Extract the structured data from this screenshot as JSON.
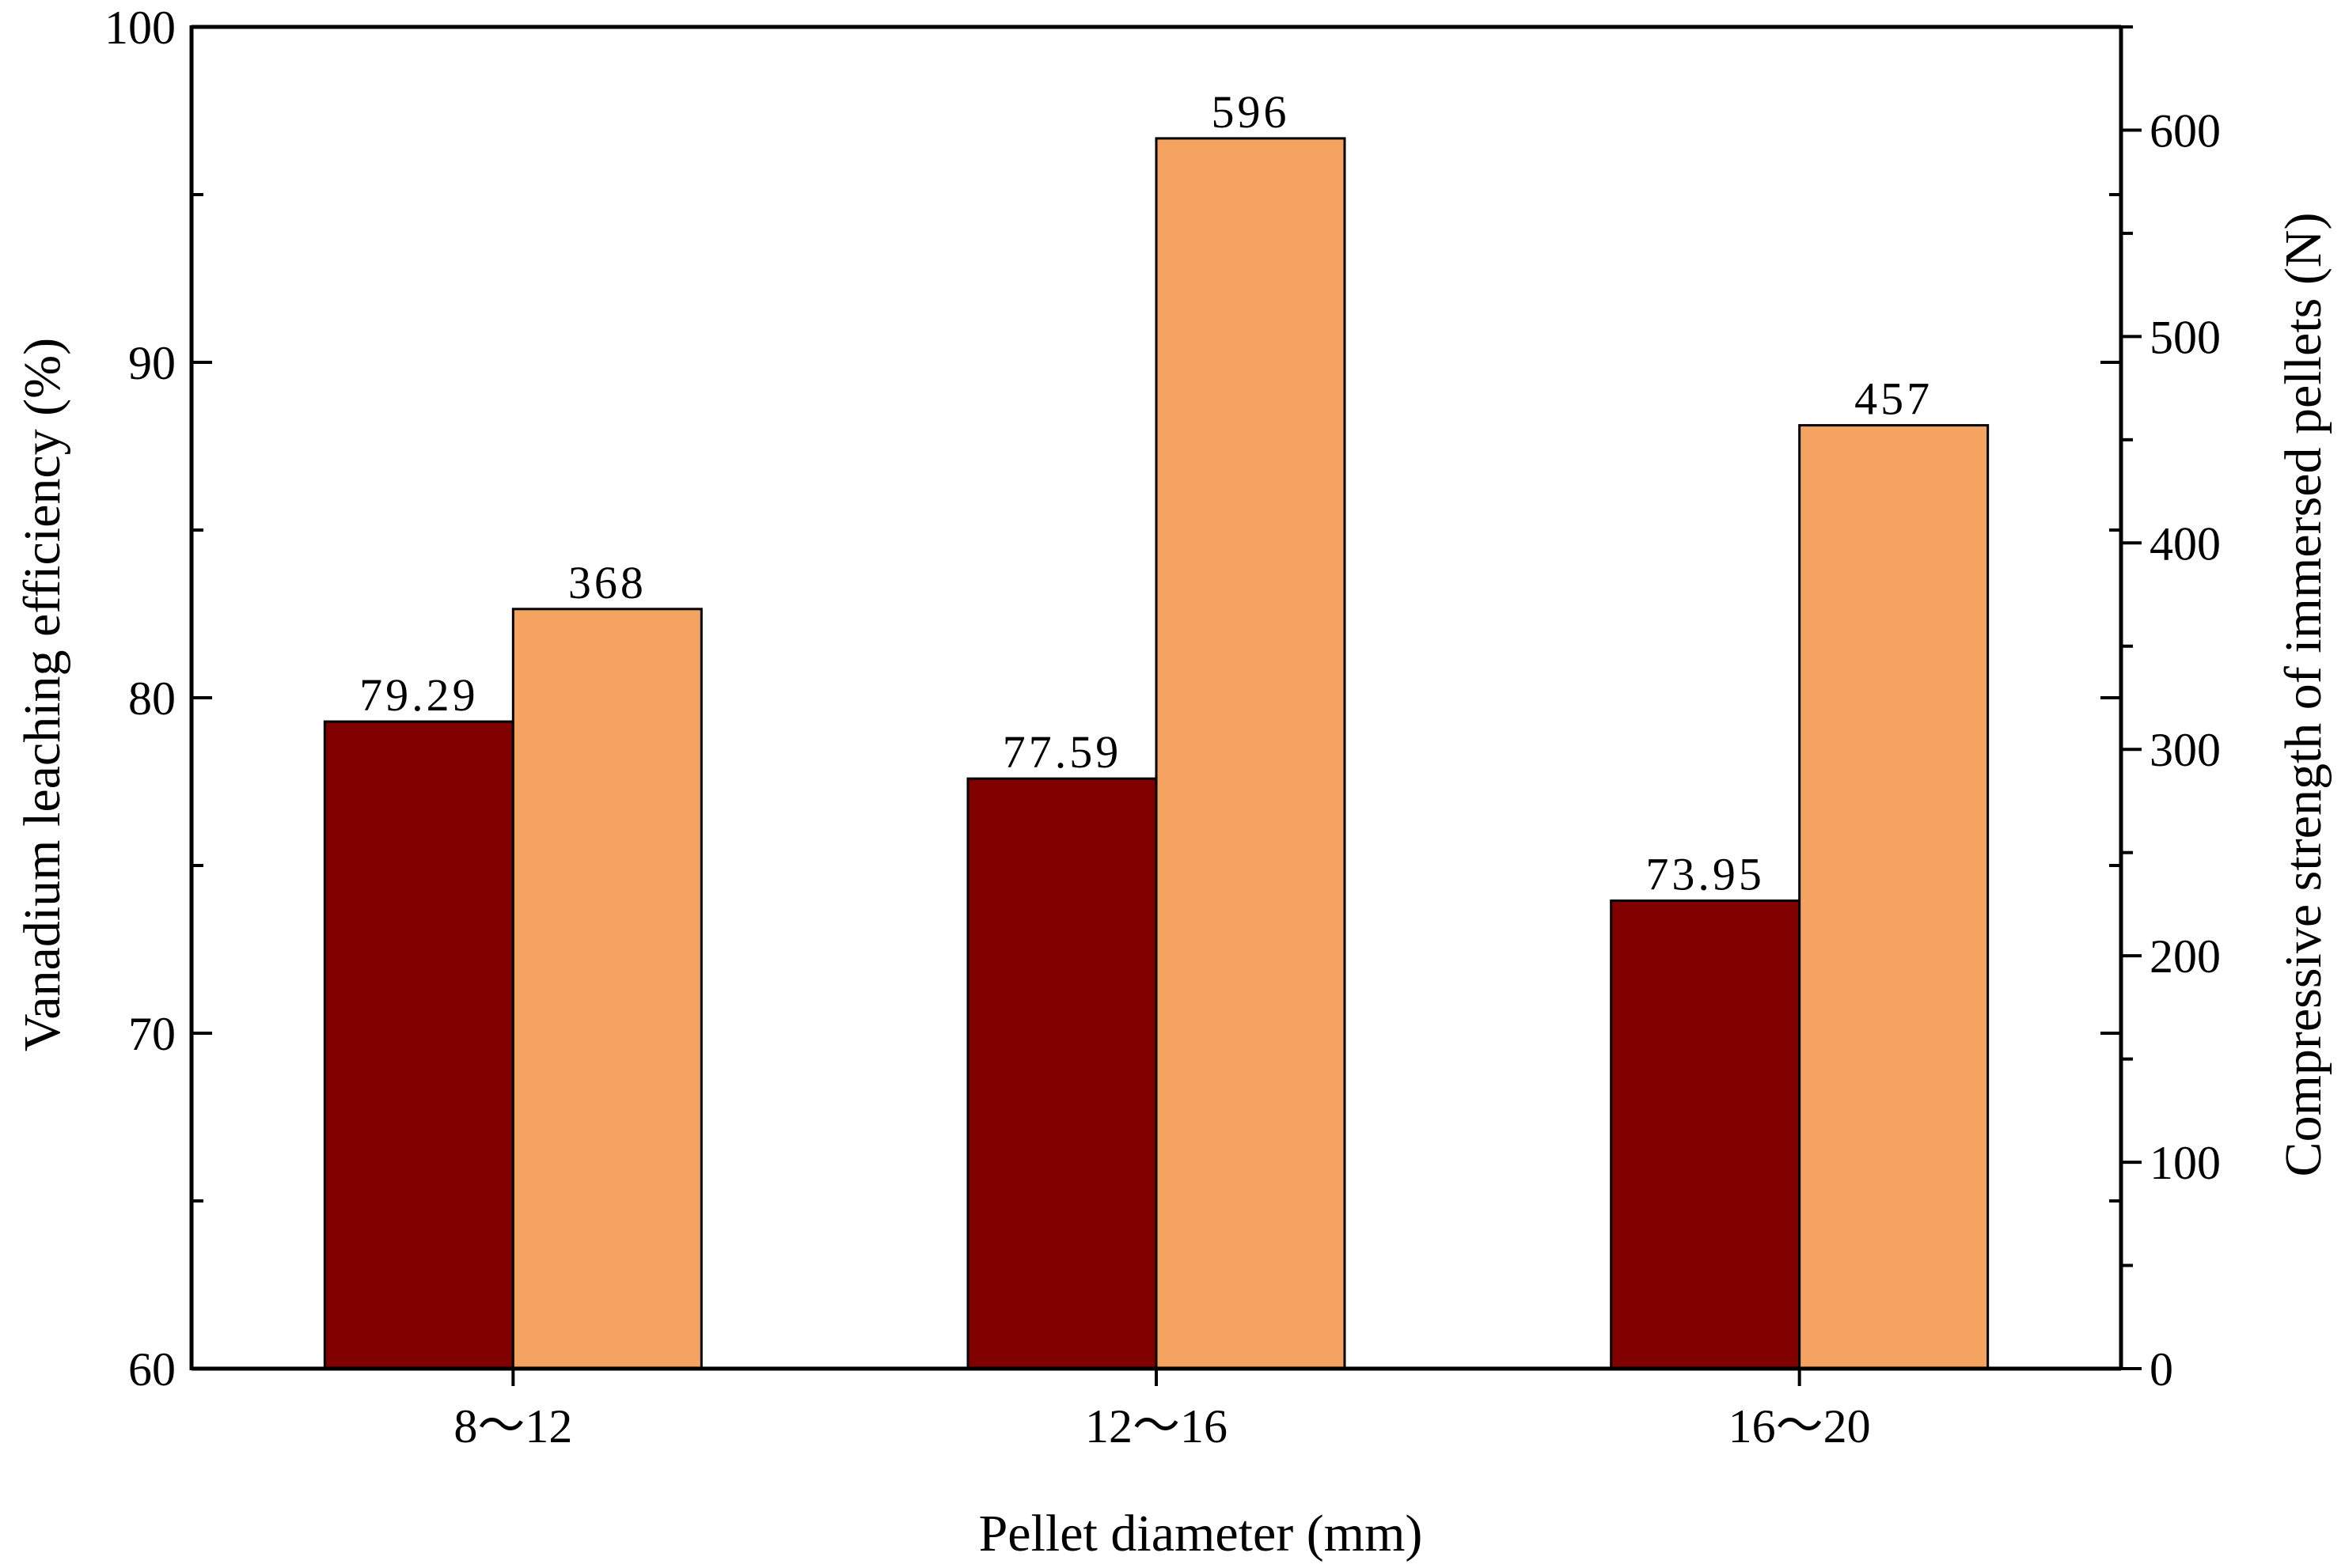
{
  "chart_data": {
    "type": "bar",
    "title": "",
    "xlabel": "Pellet diameter (mm)",
    "ylabel_left": "Vanadium leaching efficiency (%)",
    "ylabel_right": "Compressive strength of immersed pellets (N)",
    "categories": [
      "8～12",
      "12～16",
      "16～20"
    ],
    "ylim_left": [
      60,
      100
    ],
    "ylim_right": [
      0,
      650
    ],
    "yticks_left": [
      60,
      70,
      80,
      90,
      100
    ],
    "yticks_right": [
      0,
      100,
      200,
      300,
      400,
      500,
      600
    ],
    "grid": false,
    "series": [
      {
        "name": "Vanadium leaching efficiency",
        "axis": "left",
        "color": "#800000",
        "values": [
          79.29,
          77.59,
          73.95
        ],
        "labels": [
          "79.29",
          "77.59",
          "73.95"
        ]
      },
      {
        "name": "Compressive strength of immersed pellets",
        "axis": "right",
        "color": "#F4A460",
        "values": [
          368,
          596,
          457
        ],
        "labels": [
          "368",
          "596",
          "457"
        ]
      }
    ]
  }
}
